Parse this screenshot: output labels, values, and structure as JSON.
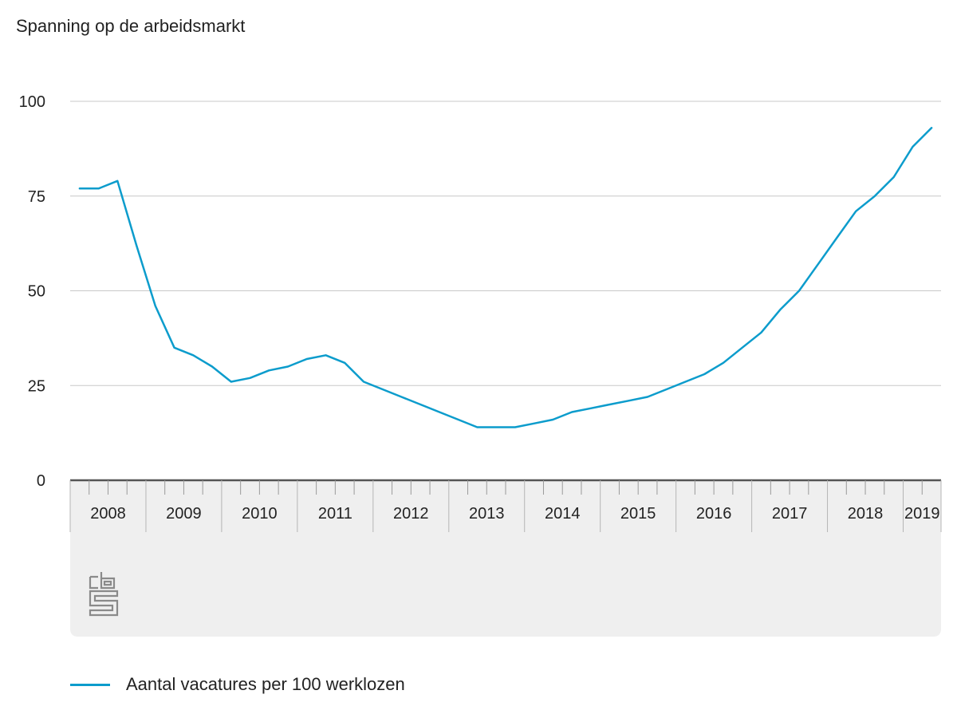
{
  "title": "Spanning op de arbeidsmarkt",
  "logo": "cbs-logo",
  "colors": {
    "series": "#0c9ccc",
    "grid": "#c8c8c8",
    "axis": "#555555",
    "axis_band": "#efefef",
    "band_separator": "#b5b5b5"
  },
  "chart_data": {
    "type": "line",
    "ylim": [
      0,
      100
    ],
    "yticks": [
      0,
      25,
      50,
      75,
      100
    ],
    "grid": true,
    "legend_position": "bottom-left",
    "year_labels": [
      "2008",
      "2009",
      "2010",
      "2011",
      "2012",
      "2013",
      "2014",
      "2015",
      "2016",
      "2017",
      "2018",
      "2019"
    ],
    "xlim": [
      2008.0,
      2019.5
    ],
    "series": [
      {
        "name": "Aantal vacatures per 100 werklozen",
        "x": [
          2008.125,
          2008.375,
          2008.625,
          2008.875,
          2009.125,
          2009.375,
          2009.625,
          2009.875,
          2010.125,
          2010.375,
          2010.625,
          2010.875,
          2011.125,
          2011.375,
          2011.625,
          2011.875,
          2012.125,
          2012.375,
          2012.625,
          2012.875,
          2013.125,
          2013.375,
          2013.625,
          2013.875,
          2014.125,
          2014.375,
          2014.625,
          2014.875,
          2015.125,
          2015.375,
          2015.625,
          2015.875,
          2016.125,
          2016.375,
          2016.625,
          2016.875,
          2017.125,
          2017.375,
          2017.625,
          2017.875,
          2018.125,
          2018.375,
          2018.625,
          2018.875,
          2019.125,
          2019.375
        ],
        "values": [
          77,
          77,
          79,
          62,
          46,
          35,
          33,
          30,
          26,
          27,
          29,
          30,
          32,
          33,
          31,
          26,
          24,
          22,
          20,
          18,
          16,
          14,
          14,
          14,
          15,
          16,
          18,
          19,
          20,
          21,
          22,
          24,
          26,
          28,
          31,
          35,
          39,
          45,
          50,
          57,
          64,
          71,
          75,
          80,
          88,
          93
        ]
      }
    ]
  }
}
